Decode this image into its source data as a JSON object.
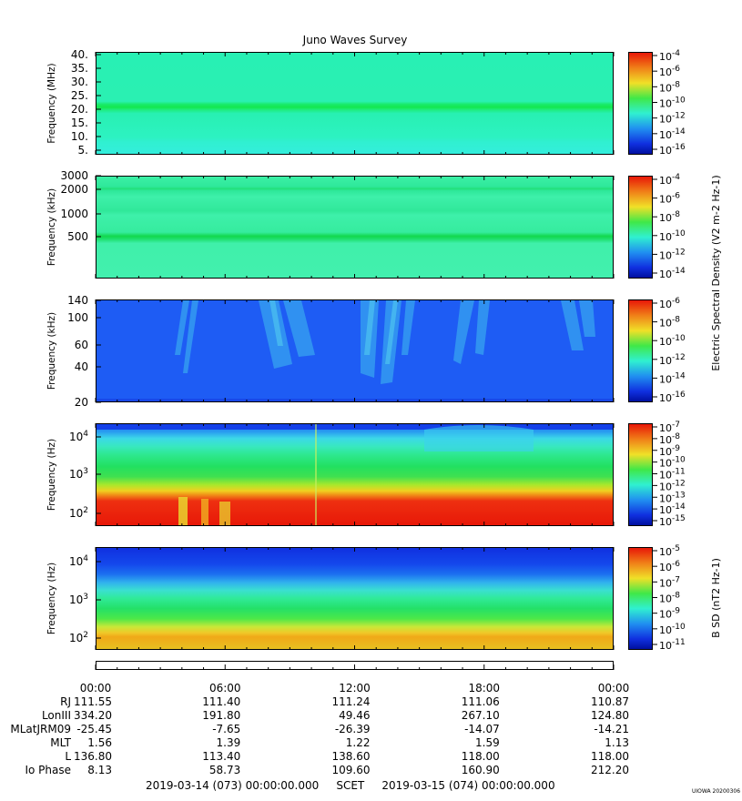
{
  "title": "Juno Waves Survey",
  "stamp": "UIOWA 20200306",
  "panels": [
    {
      "ylabel": "Frequency (MHz)",
      "ticks": [
        "40.",
        "35.",
        "30.",
        "25.",
        "20.",
        "15.",
        "10.",
        "5."
      ],
      "cbar_ticks": [
        "10^-4",
        "10^-6",
        "10^-8",
        "10^-10",
        "10^-12",
        "10^-14",
        "10^-16"
      ],
      "cbar_label": ""
    },
    {
      "ylabel": "Frequency (kHz)",
      "ticks": [
        "3000",
        "2000",
        "1000",
        "500"
      ],
      "cbar_ticks": [
        "10^-4",
        "10^-6",
        "10^-8",
        "10^-10",
        "10^-12",
        "10^-14"
      ],
      "cbar_label": "Electric Spectral Density (V^2 m^-2 Hz^-1)"
    },
    {
      "ylabel": "Frequency (kHz)",
      "ticks": [
        "140",
        "100",
        "60",
        "40",
        "20"
      ],
      "cbar_ticks": [
        "10^-6",
        "10^-8",
        "10^-10",
        "10^-12",
        "10^-14",
        "10^-16"
      ],
      "cbar_label": ""
    },
    {
      "ylabel": "Frequency (Hz)",
      "ticks": [
        "10^4",
        "10^3",
        "10^2"
      ],
      "cbar_ticks": [
        "10^-7",
        "10^-8",
        "10^-9",
        "10^-10",
        "10^-11",
        "10^-12",
        "10^-13",
        "10^-14",
        "10^-15"
      ],
      "cbar_label": ""
    },
    {
      "ylabel": "Frequency (Hz)",
      "ticks": [
        "10^4",
        "10^3",
        "10^2"
      ],
      "cbar_ticks": [
        "10^-5",
        "10^-6",
        "10^-7",
        "10^-8",
        "10^-9",
        "10^-10",
        "10^-11"
      ],
      "cbar_label": "B SD (nT^2 Hz^-1)"
    }
  ],
  "chart_data": {
    "type": "heatmap",
    "title": "Juno Waves Survey",
    "x_ticks": [
      "00:00",
      "06:00",
      "12:00",
      "18:00",
      "00:00"
    ],
    "ephemeris": [
      {
        "label": "RJ",
        "values": [
          "111.55",
          "111.40",
          "111.24",
          "111.06",
          "110.87"
        ]
      },
      {
        "label": "LonIII",
        "values": [
          "334.20",
          "191.80",
          "49.46",
          "267.10",
          "124.80"
        ]
      },
      {
        "label": "MLatJRM09",
        "values": [
          "-25.45",
          "-7.65",
          "-26.39",
          "-14.07",
          "-14.21"
        ]
      },
      {
        "label": "MLT",
        "values": [
          "1.56",
          "1.39",
          "1.22",
          "1.59",
          "1.13"
        ]
      },
      {
        "label": "L",
        "values": [
          "136.80",
          "113.40",
          "138.60",
          "118.00",
          "118.00"
        ]
      },
      {
        "label": "Io Phase",
        "values": [
          "8.13",
          "58.73",
          "109.60",
          "160.90",
          "212.20"
        ]
      }
    ],
    "scet": {
      "start": "2019-03-14 (073) 00:00:00.000",
      "label": "SCET",
      "end": "2019-03-15 (074) 00:00:00.000"
    }
  }
}
